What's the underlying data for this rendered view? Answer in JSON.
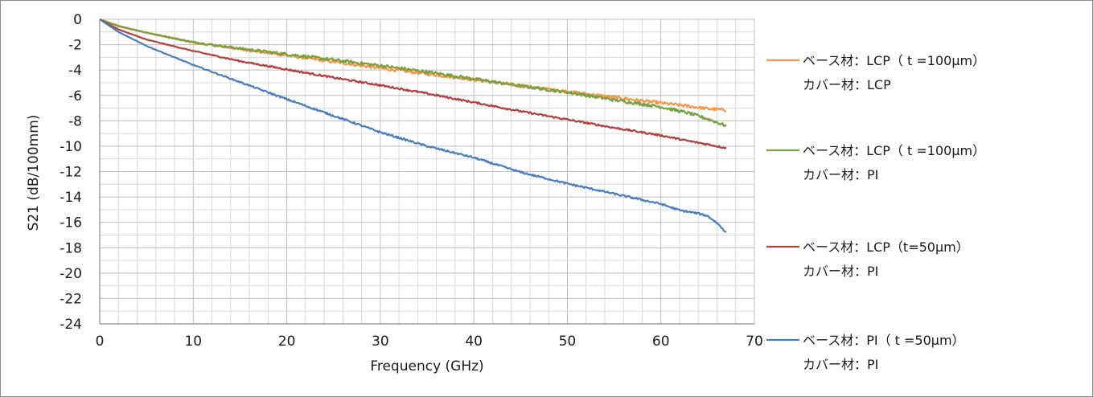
{
  "chart_data": {
    "type": "line",
    "title": "",
    "xlabel": "Frequency (GHz)",
    "ylabel": "S21 (dB/100mm)",
    "xlim": [
      0,
      70
    ],
    "ylim": [
      -24,
      0
    ],
    "xticks": [
      0,
      10,
      20,
      30,
      40,
      50,
      60,
      70
    ],
    "yticks": [
      0,
      -2,
      -4,
      -6,
      -8,
      -10,
      -12,
      -14,
      -16,
      -18,
      -20,
      -22,
      -24
    ],
    "xtick_labels": [
      "0",
      "10",
      "20",
      "30",
      "40",
      "50",
      "60",
      "70"
    ],
    "ytick_labels": [
      "0",
      "-2",
      "-4",
      "-6",
      "-8",
      "-10",
      "-12",
      "-14",
      "-16",
      "-18",
      "-20",
      "-22",
      "-24"
    ],
    "grid": true,
    "legend_position": "right",
    "series": [
      {
        "name": "ベース材：LCP（ t =100μm）",
        "name_line2": "カバー材：LCP",
        "color": "#f79646",
        "points": [
          [
            0,
            0
          ],
          [
            2,
            -0.5
          ],
          [
            5,
            -1.05
          ],
          [
            10,
            -1.85
          ],
          [
            15,
            -2.35
          ],
          [
            20,
            -2.85
          ],
          [
            25,
            -3.35
          ],
          [
            30,
            -3.85
          ],
          [
            35,
            -4.3
          ],
          [
            40,
            -4.75
          ],
          [
            45,
            -5.25
          ],
          [
            50,
            -5.7
          ],
          [
            55,
            -6.15
          ],
          [
            60,
            -6.6
          ],
          [
            63,
            -6.85
          ],
          [
            65,
            -7.05
          ],
          [
            67,
            -7.15
          ]
        ]
      },
      {
        "name": "ベース材：LCP（ t =100μm）",
        "name_line2": "カバー材：PI",
        "color": "#77a03f",
        "points": [
          [
            0,
            0
          ],
          [
            2,
            -0.55
          ],
          [
            5,
            -1.05
          ],
          [
            10,
            -1.8
          ],
          [
            15,
            -2.3
          ],
          [
            20,
            -2.75
          ],
          [
            25,
            -3.2
          ],
          [
            30,
            -3.65
          ],
          [
            35,
            -4.15
          ],
          [
            40,
            -4.7
          ],
          [
            45,
            -5.25
          ],
          [
            50,
            -5.75
          ],
          [
            55,
            -6.35
          ],
          [
            60,
            -6.9
          ],
          [
            63,
            -7.4
          ],
          [
            65,
            -7.85
          ],
          [
            67,
            -8.4
          ]
        ]
      },
      {
        "name": "ベース材：LCP（t=50μm）",
        "name_line2": "カバー材：PI",
        "color": "#b2413e",
        "points": [
          [
            0,
            0
          ],
          [
            2,
            -0.8
          ],
          [
            5,
            -1.6
          ],
          [
            10,
            -2.5
          ],
          [
            15,
            -3.3
          ],
          [
            20,
            -3.95
          ],
          [
            25,
            -4.6
          ],
          [
            30,
            -5.2
          ],
          [
            35,
            -5.85
          ],
          [
            40,
            -6.55
          ],
          [
            45,
            -7.25
          ],
          [
            50,
            -7.9
          ],
          [
            55,
            -8.55
          ],
          [
            60,
            -9.15
          ],
          [
            63,
            -9.6
          ],
          [
            65,
            -9.85
          ],
          [
            67,
            -10.15
          ]
        ]
      },
      {
        "name": "ベース材：PI（ t =50μm）",
        "name_line2": "カバー材：PI",
        "color": "#4a7ebb",
        "points": [
          [
            0,
            0
          ],
          [
            2,
            -1.0
          ],
          [
            5,
            -2.1
          ],
          [
            10,
            -3.6
          ],
          [
            15,
            -4.95
          ],
          [
            20,
            -6.3
          ],
          [
            25,
            -7.6
          ],
          [
            30,
            -8.9
          ],
          [
            35,
            -10.0
          ],
          [
            40,
            -10.9
          ],
          [
            45,
            -12.05
          ],
          [
            50,
            -12.95
          ],
          [
            55,
            -13.75
          ],
          [
            60,
            -14.55
          ],
          [
            62,
            -15.05
          ],
          [
            64,
            -15.3
          ],
          [
            65,
            -15.5
          ],
          [
            66,
            -16.05
          ],
          [
            67,
            -16.8
          ]
        ]
      }
    ]
  }
}
